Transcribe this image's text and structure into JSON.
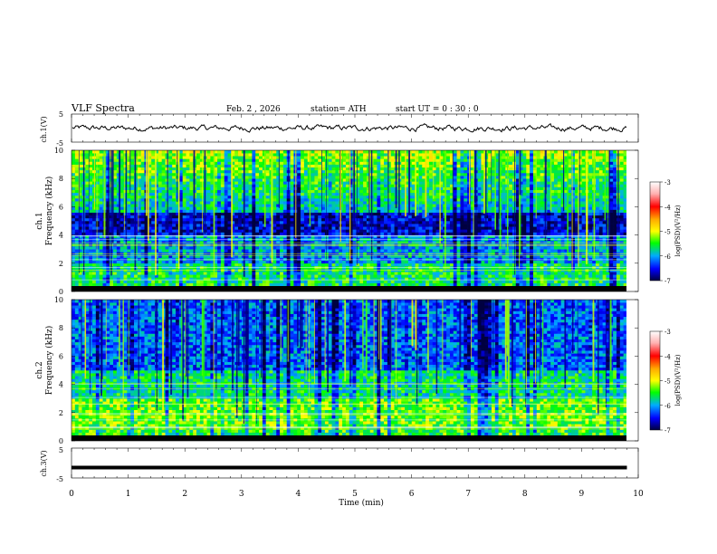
{
  "header": {
    "title": "VLF  Spectra",
    "date": "Feb. 2  , 2026",
    "station": "station= ATH",
    "start_ut": "start  UT  =    0  : 30 : 0"
  },
  "chart_data": [
    {
      "type": "line",
      "panel": "ch1",
      "ylabel": "ch.1(V)",
      "ylim": [
        -5,
        5
      ],
      "yticks": [
        "5",
        "-5"
      ],
      "xlim": [
        0,
        10
      ],
      "description_level": 0,
      "color": "#000000"
    },
    {
      "type": "heatmap",
      "panel": "ch1-spectrogram",
      "ylabel_top": "ch.1",
      "ylabel": "Frequency  (kHz)",
      "ylim": [
        0,
        10
      ],
      "yticks": [
        "0",
        "2",
        "4",
        "6",
        "8",
        "10"
      ],
      "xlim": [
        0,
        9.8
      ],
      "colorbar": {
        "label": "log(PSD)(V²/Hz)",
        "ticks": [
          "-3",
          "-4",
          "-5",
          "-6",
          "-7"
        ],
        "range": [
          -7,
          -3
        ]
      }
    },
    {
      "type": "heatmap",
      "panel": "ch2-spectrogram",
      "ylabel_top": "ch.2",
      "ylabel": "Frequency  (kHz)",
      "ylim": [
        0,
        10
      ],
      "yticks": [
        "0",
        "2",
        "4",
        "6",
        "8",
        "10"
      ],
      "xlim": [
        0,
        9.8
      ],
      "colorbar": {
        "label": "log(PSD)(V²/Hz)",
        "ticks": [
          "-3",
          "-4",
          "-5",
          "-6",
          "-7"
        ],
        "range": [
          -7,
          -3
        ]
      }
    },
    {
      "type": "line",
      "panel": "ch3",
      "ylabel": "ch.3(V)",
      "ylim": [
        -5,
        5
      ],
      "yticks": [
        "5",
        "-5"
      ],
      "xlim": [
        0,
        10
      ],
      "level": -1.5,
      "color": "#000000"
    }
  ],
  "xaxis": {
    "label": "Time  (min)",
    "ticks": [
      "0",
      "1",
      "2",
      "3",
      "4",
      "5",
      "6",
      "7",
      "8",
      "9",
      "10"
    ]
  }
}
